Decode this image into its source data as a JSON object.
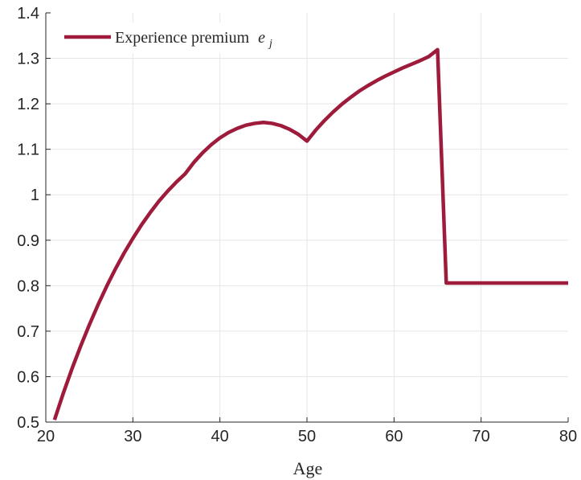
{
  "chart_data": {
    "type": "line",
    "title": "",
    "xlabel": "Age",
    "ylabel": "",
    "xlim": [
      20,
      80
    ],
    "ylim": [
      0.5,
      1.4
    ],
    "xticks": [
      20,
      30,
      40,
      50,
      60,
      70,
      80
    ],
    "yticks": [
      0.5,
      0.6,
      0.7,
      0.8,
      0.9,
      1.0,
      1.1,
      1.2,
      1.3,
      1.4
    ],
    "xtick_labels": [
      "20",
      "30",
      "40",
      "50",
      "60",
      "70",
      "80"
    ],
    "ytick_labels": [
      "0.5",
      "0.6",
      "0.7",
      "0.8",
      "0.9",
      "1",
      "1.1",
      "1.2",
      "1.3",
      "1.4"
    ],
    "grid": true,
    "legend_position": "top-left",
    "series": [
      {
        "name": "Experience premium",
        "name_symbol": "e",
        "name_subscript": "j",
        "color": "#9e1b3c",
        "x": [
          21,
          22,
          23,
          24,
          25,
          26,
          27,
          28,
          29,
          30,
          31,
          32,
          33,
          34,
          35,
          36,
          37,
          38,
          39,
          40,
          41,
          42,
          43,
          44,
          45,
          46,
          47,
          48,
          49,
          50,
          51,
          52,
          53,
          54,
          55,
          56,
          57,
          58,
          59,
          60,
          61,
          62,
          63,
          64,
          65,
          66,
          67,
          68,
          69,
          70,
          71,
          72,
          73,
          74,
          75,
          76,
          77,
          78,
          79,
          80
        ],
        "values": [
          0.505,
          0.563,
          0.617,
          0.667,
          0.714,
          0.758,
          0.799,
          0.837,
          0.872,
          0.904,
          0.934,
          0.961,
          0.986,
          1.008,
          1.028,
          1.046,
          1.071,
          1.092,
          1.11,
          1.125,
          1.137,
          1.146,
          1.153,
          1.157,
          1.159,
          1.157,
          1.152,
          1.144,
          1.133,
          1.118,
          1.142,
          1.163,
          1.182,
          1.199,
          1.214,
          1.228,
          1.24,
          1.251,
          1.261,
          1.27,
          1.279,
          1.287,
          1.295,
          1.304,
          1.319,
          0.806,
          0.806,
          0.806,
          0.806,
          0.806,
          0.806,
          0.806,
          0.806,
          0.806,
          0.806,
          0.806,
          0.806,
          0.806,
          0.806,
          0.806
        ]
      }
    ]
  }
}
